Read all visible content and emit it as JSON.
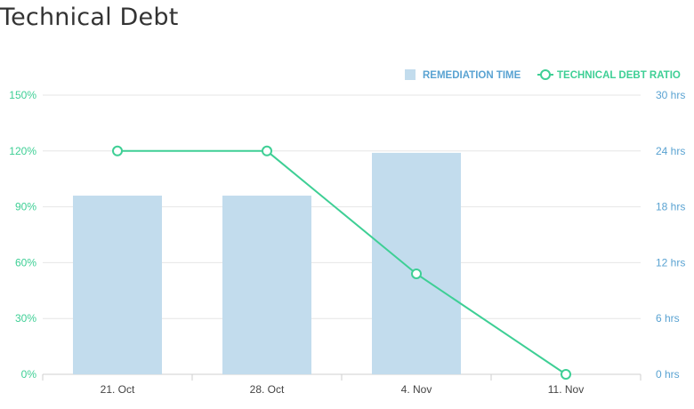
{
  "page": {
    "title": "Technical Debt"
  },
  "colors": {
    "bar": "#c2dced",
    "line": "#3ecf95",
    "left_axis_text": "#3ecf95",
    "right_axis_text": "#5aa3d2",
    "x_axis_text": "#444444",
    "grid": "#e6e6e6",
    "legend_bar_text": "#5aa3d2",
    "legend_line_text": "#3ecf95"
  },
  "chart_data": {
    "type": "bar",
    "title": "Technical Debt",
    "categories": [
      "21. Oct",
      "28. Oct",
      "4. Nov",
      "11. Nov"
    ],
    "series": [
      {
        "name": "REMEDIATION TIME",
        "kind": "bar",
        "axis": "right",
        "values": [
          19.2,
          19.2,
          23.8,
          0
        ]
      },
      {
        "name": "TECHNICAL DEBT RATIO",
        "kind": "line",
        "axis": "left",
        "values": [
          120,
          120,
          54,
          0
        ]
      }
    ],
    "y_left": {
      "ticks": [
        "0%",
        "30%",
        "60%",
        "90%",
        "120%",
        "150%"
      ],
      "range": [
        0,
        150
      ]
    },
    "y_right": {
      "ticks": [
        "0 hrs",
        "6 hrs",
        "12 hrs",
        "18 hrs",
        "24 hrs",
        "30 hrs"
      ],
      "range": [
        0,
        30
      ]
    },
    "grid": true,
    "legend_position": "top-right"
  }
}
